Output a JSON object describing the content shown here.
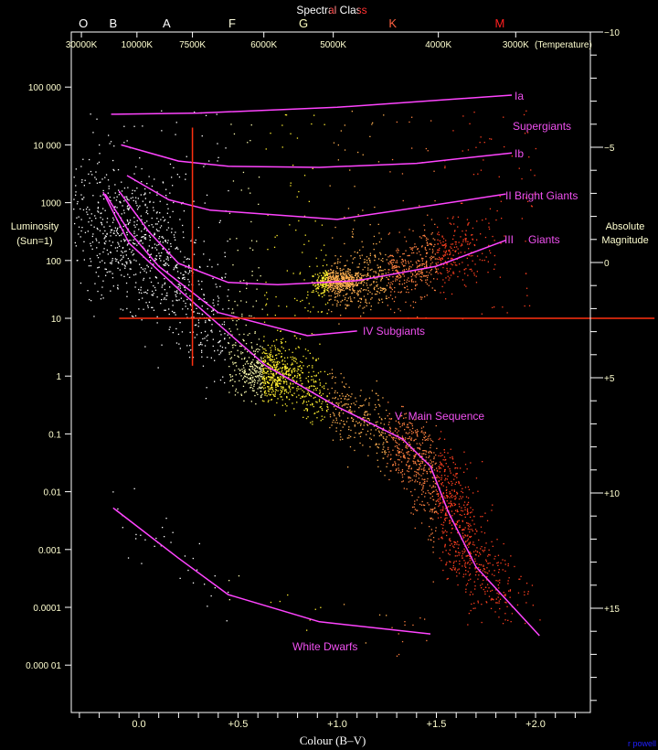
{
  "chart_data": {
    "type": "scatter",
    "top_title": "Spectral Class",
    "xlabel": "Colour (B–V)",
    "ylabel_left": [
      "Luminosity",
      "(Sun=1)"
    ],
    "ylabel_right": [
      "Absolute",
      "Magnitude"
    ],
    "temperature_label": "(Temperature)",
    "credit": "r powell",
    "y_scale": "log",
    "xlim": [
      -0.34,
      2.28
    ],
    "ylim_luminosity": [
      1.5e-06,
      5000000
    ],
    "ylim_magnitude": [
      -10,
      19.5
    ],
    "x_ticks": [
      {
        "v": 0.0,
        "label": "0.0"
      },
      {
        "v": 0.5,
        "label": "+0.5"
      },
      {
        "v": 1.0,
        "label": "+1.0"
      },
      {
        "v": 1.5,
        "label": "+1.5"
      },
      {
        "v": 2.0,
        "label": "+2.0"
      }
    ],
    "y_ticks_left": [
      {
        "logL": 5,
        "label": "100 000"
      },
      {
        "logL": 4,
        "label": "10 000"
      },
      {
        "logL": 3,
        "label": "1000"
      },
      {
        "logL": 2,
        "label": "100"
      },
      {
        "logL": 1,
        "label": "10"
      },
      {
        "logL": 0,
        "label": "1"
      },
      {
        "logL": -1,
        "label": "0.1"
      },
      {
        "logL": -2,
        "label": "0.01"
      },
      {
        "logL": -3,
        "label": "0.001"
      },
      {
        "logL": -4,
        "label": "0.0001"
      },
      {
        "logL": -5,
        "label": "0.000 01"
      }
    ],
    "y_ticks_right": [
      {
        "M": -10,
        "label": "−10"
      },
      {
        "M": -5,
        "label": "−5"
      },
      {
        "M": 0,
        "label": "0"
      },
      {
        "M": 5,
        "label": "+5"
      },
      {
        "M": 10,
        "label": "+10"
      },
      {
        "M": 15,
        "label": "+15"
      }
    ],
    "temperature_ticks": [
      {
        "bv": -0.29,
        "label": "30000K"
      },
      {
        "bv": -0.01,
        "label": "10000K"
      },
      {
        "bv": 0.27,
        "label": "7500K"
      },
      {
        "bv": 0.63,
        "label": "6000K"
      },
      {
        "bv": 0.98,
        "label": "5000K"
      },
      {
        "bv": 1.51,
        "label": "4000K"
      },
      {
        "bv": 1.9,
        "label": "3000K"
      }
    ],
    "spectral_classes": [
      {
        "bv": -0.28,
        "label": "O",
        "color": "#ffffff"
      },
      {
        "bv": -0.13,
        "label": "B",
        "color": "#ffffff"
      },
      {
        "bv": 0.14,
        "label": "A",
        "color": "#ffffff"
      },
      {
        "bv": 0.47,
        "label": "F",
        "color": "#ffffe0"
      },
      {
        "bv": 0.83,
        "label": "G",
        "color": "#ffffc0"
      },
      {
        "bv": 1.28,
        "label": "K",
        "color": "#ff6040"
      },
      {
        "bv": 1.82,
        "label": "M",
        "color": "#ff2020"
      }
    ],
    "series": [
      {
        "name": "Ia",
        "points": [
          [
            -0.14,
            4.53
          ],
          [
            0.3,
            4.55
          ],
          [
            1.0,
            4.65
          ],
          [
            1.88,
            4.86
          ]
        ]
      },
      {
        "name": "Ib",
        "points": [
          [
            -0.09,
            4.0
          ],
          [
            0.2,
            3.72
          ],
          [
            0.45,
            3.63
          ],
          [
            0.91,
            3.61
          ],
          [
            1.4,
            3.68
          ],
          [
            1.88,
            3.86
          ]
        ]
      },
      {
        "name": "II Bright Giants",
        "points": [
          [
            -0.06,
            3.47
          ],
          [
            0.15,
            3.05
          ],
          [
            0.36,
            2.87
          ],
          [
            1.0,
            2.71
          ],
          [
            1.47,
            2.95
          ],
          [
            1.85,
            3.15
          ]
        ]
      },
      {
        "name": "III",
        "points": [
          [
            -0.1,
            3.2
          ],
          [
            0.05,
            2.5
          ],
          [
            0.2,
            1.95
          ],
          [
            0.45,
            1.62
          ],
          [
            0.7,
            1.58
          ],
          [
            1.1,
            1.65
          ],
          [
            1.5,
            1.9
          ],
          [
            1.85,
            2.35
          ]
        ]
      },
      {
        "name": "IV Subgiants",
        "points": [
          [
            -0.17,
            3.15
          ],
          [
            -0.05,
            2.5
          ],
          [
            0.1,
            1.9
          ],
          [
            0.4,
            1.1
          ],
          [
            0.85,
            0.7
          ],
          [
            1.1,
            0.78
          ]
        ]
      },
      {
        "name": "V Main Sequence",
        "points": [
          [
            -0.18,
            3.18
          ],
          [
            -0.05,
            2.3
          ],
          [
            0.22,
            1.44
          ],
          [
            0.64,
            0.18
          ],
          [
            1.0,
            -0.53
          ],
          [
            1.33,
            -1.09
          ],
          [
            1.47,
            -1.56
          ],
          [
            1.56,
            -2.35
          ],
          [
            1.7,
            -3.3
          ],
          [
            2.02,
            -4.49
          ]
        ]
      },
      {
        "name": "White Dwarfs",
        "points": [
          [
            -0.13,
            -2.28
          ],
          [
            0.2,
            -3.15
          ],
          [
            0.45,
            -3.78
          ],
          [
            0.91,
            -4.25
          ],
          [
            1.47,
            -4.46
          ]
        ]
      }
    ],
    "labels": {
      "ia": "Ia",
      "supergiants": "Supergiants",
      "ib": "Ib",
      "ii": "II Bright Giants",
      "iii": "III",
      "giants": "Giants",
      "iv": "IV Subgiants",
      "v": "V  Main Sequence",
      "wd": "White Dwarfs"
    },
    "guide_lines": [
      {
        "orientation": "vertical",
        "bv": 0.27,
        "logL_range": [
          0.18,
          4.3
        ]
      },
      {
        "orientation": "horizontal",
        "logL": 1,
        "bv_range": [
          -0.1,
          2.6
        ]
      }
    ],
    "colors": {
      "curves": "#ff44ff",
      "labels": "#f050f0",
      "guides": "#ff3010",
      "axis_text": "#ffffd0",
      "background": "#000000",
      "credit": "#2020ff"
    }
  }
}
